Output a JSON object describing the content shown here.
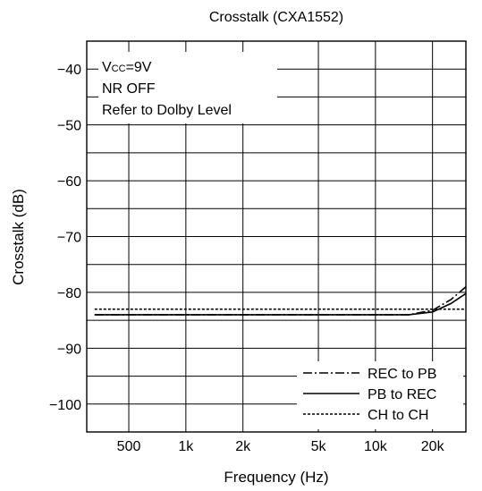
{
  "chart_data": {
    "type": "line",
    "title": "Crosstalk (CXA1552)",
    "xlabel": "Frequency (Hz)",
    "ylabel": "Crosstalk (dB)",
    "x_scale": "log",
    "xlim": [
      300,
      30000
    ],
    "ylim": [
      -105,
      -35
    ],
    "x_ticks": [
      500,
      1000,
      2000,
      5000,
      10000,
      20000
    ],
    "x_tick_labels": [
      "500",
      "1k",
      "2k",
      "5k",
      "10k",
      "20k"
    ],
    "y_ticks": [
      -40,
      -50,
      -60,
      -70,
      -80,
      -90,
      -100
    ],
    "y_tick_labels": [
      "−40",
      "−50",
      "−60",
      "−70",
      "−80",
      "−90",
      "−100"
    ],
    "grid": true,
    "legend_position": "bottom-right",
    "annotations": {
      "line1_main": "V",
      "line1_sub": "CC",
      "line1_rest": "=9V",
      "line2": "NR OFF",
      "line3": "Refer to Dolby Level"
    },
    "series": [
      {
        "name": "REC to PB",
        "style": "dashdot",
        "x": [
          330,
          1000,
          5000,
          10000,
          15000,
          20000,
          25000,
          30000
        ],
        "y": [
          -84,
          -84,
          -84,
          -84,
          -84,
          -83.2,
          -81.3,
          -79
        ]
      },
      {
        "name": "PB to REC",
        "style": "solid",
        "x": [
          330,
          1000,
          5000,
          10000,
          15000,
          20000,
          25000,
          30000
        ],
        "y": [
          -84,
          -84,
          -84,
          -84,
          -84,
          -83.5,
          -82,
          -80.2
        ]
      },
      {
        "name": "CH to CH",
        "style": "dotted",
        "x": [
          330,
          1000,
          5000,
          10000,
          20000,
          30000
        ],
        "y": [
          -83,
          -83,
          -83,
          -83,
          -83,
          -83
        ]
      }
    ]
  }
}
